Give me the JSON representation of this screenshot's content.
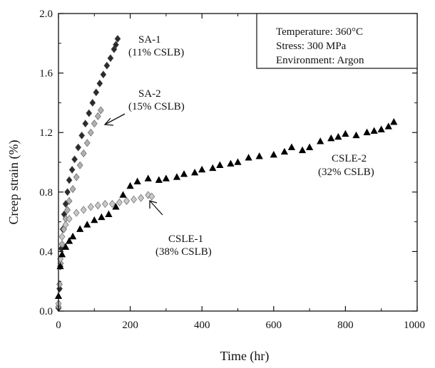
{
  "chart_data": {
    "type": "scatter",
    "title": "",
    "xlabel": "Time (hr)",
    "ylabel": "Creep strain (%)",
    "xlim": [
      0,
      1000
    ],
    "ylim": [
      0.0,
      2.0
    ],
    "xticks": [
      "0",
      "200",
      "400",
      "600",
      "800",
      "1000"
    ],
    "yticks": [
      "0.0",
      "0.4",
      "0.8",
      "1.2",
      "1.6",
      "2.0"
    ],
    "grid": false,
    "legend_box": {
      "placement": "top-right",
      "lines": [
        "Temperature: 360°C",
        "Stress: 300 MPa",
        "Environment: Argon"
      ]
    },
    "series": [
      {
        "name": "SA-1 (11% CSLB)",
        "marker": "diamond",
        "color": "#2b2b2b",
        "points": [
          [
            0,
            0.02
          ],
          [
            3,
            0.15
          ],
          [
            5,
            0.3
          ],
          [
            8,
            0.42
          ],
          [
            12,
            0.55
          ],
          [
            16,
            0.65
          ],
          [
            20,
            0.72
          ],
          [
            25,
            0.8
          ],
          [
            30,
            0.88
          ],
          [
            38,
            0.95
          ],
          [
            45,
            1.02
          ],
          [
            55,
            1.1
          ],
          [
            65,
            1.18
          ],
          [
            75,
            1.26
          ],
          [
            85,
            1.33
          ],
          [
            95,
            1.4
          ],
          [
            105,
            1.47
          ],
          [
            115,
            1.53
          ],
          [
            125,
            1.59
          ],
          [
            135,
            1.65
          ],
          [
            145,
            1.7
          ],
          [
            155,
            1.76
          ],
          [
            160,
            1.79
          ],
          [
            165,
            1.83
          ]
        ]
      },
      {
        "name": "SA-2 (15% CSLB)",
        "marker": "diamond",
        "color": "#b0b0b0",
        "points": [
          [
            0,
            0.03
          ],
          [
            3,
            0.18
          ],
          [
            6,
            0.32
          ],
          [
            10,
            0.45
          ],
          [
            15,
            0.55
          ],
          [
            20,
            0.62
          ],
          [
            25,
            0.68
          ],
          [
            30,
            0.74
          ],
          [
            40,
            0.82
          ],
          [
            50,
            0.9
          ],
          [
            60,
            0.98
          ],
          [
            70,
            1.06
          ],
          [
            80,
            1.13
          ],
          [
            90,
            1.2
          ],
          [
            100,
            1.26
          ],
          [
            110,
            1.31
          ],
          [
            118,
            1.35
          ]
        ]
      },
      {
        "name": "CSLE-1 (38% CSLB)",
        "marker": "diamond",
        "color": "#c8c8c8",
        "points": [
          [
            0,
            0.05
          ],
          [
            5,
            0.35
          ],
          [
            10,
            0.5
          ],
          [
            20,
            0.58
          ],
          [
            30,
            0.62
          ],
          [
            50,
            0.66
          ],
          [
            70,
            0.68
          ],
          [
            90,
            0.7
          ],
          [
            110,
            0.71
          ],
          [
            130,
            0.72
          ],
          [
            150,
            0.72
          ],
          [
            170,
            0.73
          ],
          [
            190,
            0.74
          ],
          [
            210,
            0.75
          ],
          [
            230,
            0.76
          ],
          [
            250,
            0.78
          ],
          [
            260,
            0.77
          ]
        ]
      },
      {
        "name": "CSLE-2 (32% CSLB)",
        "marker": "triangle",
        "color": "#000000",
        "points": [
          [
            0,
            0.1
          ],
          [
            5,
            0.3
          ],
          [
            10,
            0.38
          ],
          [
            20,
            0.43
          ],
          [
            30,
            0.47
          ],
          [
            40,
            0.5
          ],
          [
            60,
            0.55
          ],
          [
            80,
            0.58
          ],
          [
            100,
            0.61
          ],
          [
            120,
            0.63
          ],
          [
            140,
            0.65
          ],
          [
            160,
            0.7
          ],
          [
            180,
            0.78
          ],
          [
            200,
            0.84
          ],
          [
            220,
            0.87
          ],
          [
            250,
            0.89
          ],
          [
            280,
            0.88
          ],
          [
            300,
            0.89
          ],
          [
            330,
            0.9
          ],
          [
            350,
            0.92
          ],
          [
            380,
            0.93
          ],
          [
            400,
            0.95
          ],
          [
            430,
            0.96
          ],
          [
            450,
            0.98
          ],
          [
            480,
            0.99
          ],
          [
            500,
            1.0
          ],
          [
            530,
            1.03
          ],
          [
            560,
            1.04
          ],
          [
            600,
            1.05
          ],
          [
            630,
            1.07
          ],
          [
            650,
            1.1
          ],
          [
            680,
            1.08
          ],
          [
            700,
            1.1
          ],
          [
            730,
            1.14
          ],
          [
            760,
            1.16
          ],
          [
            780,
            1.17
          ],
          [
            800,
            1.19
          ],
          [
            830,
            1.18
          ],
          [
            860,
            1.2
          ],
          [
            880,
            1.21
          ],
          [
            900,
            1.22
          ],
          [
            920,
            1.24
          ],
          [
            935,
            1.27
          ]
        ]
      }
    ],
    "annotations": [
      {
        "id": "sa1",
        "lines": [
          "SA-1",
          "(11% CSLB)"
        ]
      },
      {
        "id": "sa2",
        "lines": [
          "SA-2",
          "(15% CSLB)"
        ]
      },
      {
        "id": "csle2",
        "lines": [
          "CSLE-2",
          "(32% CSLB)"
        ]
      },
      {
        "id": "csle1",
        "lines": [
          "CSLE-1",
          "(38% CSLB)"
        ]
      }
    ]
  }
}
